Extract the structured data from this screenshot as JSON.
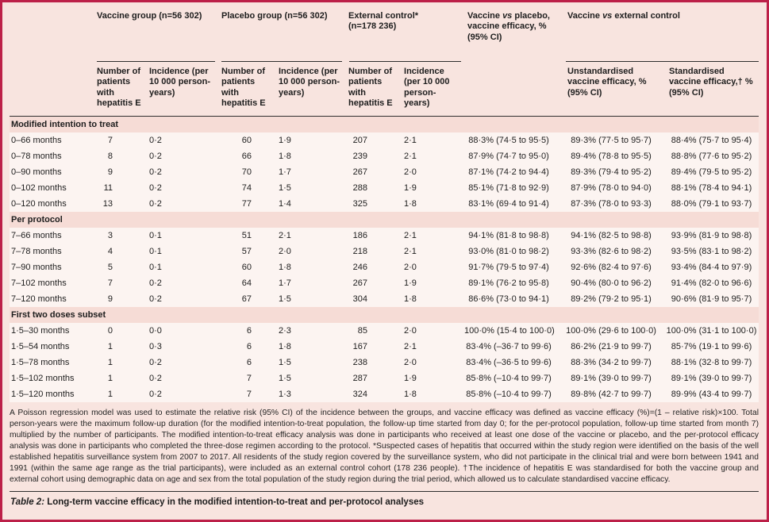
{
  "colors": {
    "accent_border": "#bc2048",
    "panel_background": "#f8e4df",
    "data_row_background": "#fcf4f1",
    "section_row_background": "#f6dcd6"
  },
  "header": {
    "groups": {
      "vaccine": {
        "label": "Vaccine group (n=56 302)"
      },
      "placebo": {
        "label": "Placebo group (n=56 302)"
      },
      "external": {
        "line1": "External control*",
        "line2": "(n=178 236)"
      },
      "vaccine_vs_placebo": {
        "pre": "Vaccine ",
        "vs": "vs",
        "post": " placebo, vaccine efficacy, % (95% CI)"
      },
      "vaccine_vs_external": {
        "pre": "Vaccine ",
        "vs": "vs",
        "post": " external control"
      }
    },
    "subheaders": {
      "n_patients": "Number of patients with hepatitis E",
      "incidence": "Incidence (per 10 000 person-years)",
      "incidence_external": "Incidence (per 10 000 person-years)",
      "unstandardised": "Unstandardised vaccine efficacy, % (95% CI)",
      "standardised": "Standardised vaccine efficacy,† % (95% CI)"
    }
  },
  "sections": [
    {
      "title": "Modified intention to treat",
      "rows": [
        [
          "0–66 months",
          "7",
          "0·2",
          "60",
          "1·9",
          "207",
          "2·1",
          "88·3% (74·5 to 95·5)",
          "89·3% (77·5 to 95·7)",
          "88·4% (75·7 to 95·4)"
        ],
        [
          "0–78 months",
          "8",
          "0·2",
          "66",
          "1·8",
          "239",
          "2·1",
          "87·9% (74·7 to 95·0)",
          "89·4% (78·8 to 95·5)",
          "88·8% (77·6 to 95·2)"
        ],
        [
          "0–90 months",
          "9",
          "0·2",
          "70",
          "1·7",
          "267",
          "2·0",
          "87·1% (74·2 to 94·4)",
          "89·3% (79·4 to 95·2)",
          "89·4% (79·5 to 95·2)"
        ],
        [
          "0–102 months",
          "11",
          "0·2",
          "74",
          "1·5",
          "288",
          "1·9",
          "85·1% (71·8 to 92·9)",
          "87·9% (78·0 to 94·0)",
          "88·1% (78·4 to 94·1)"
        ],
        [
          "0–120 months",
          "13",
          "0·2",
          "77",
          "1·4",
          "325",
          "1·8",
          "83·1% (69·4 to 91·4)",
          "87·3% (78·0 to 93·3)",
          "88·0% (79·1 to 93·7)"
        ]
      ]
    },
    {
      "title": "Per protocol",
      "rows": [
        [
          "7–66 months",
          "3",
          "0·1",
          "51",
          "2·1",
          "186",
          "2·1",
          "94·1% (81·8 to 98·8)",
          "94·1% (82·5 to 98·8)",
          "93·9% (81·9 to 98·8)"
        ],
        [
          "7–78 months",
          "4",
          "0·1",
          "57",
          "2·0",
          "218",
          "2·1",
          "93·0% (81·0 to 98·2)",
          "93·3% (82·6 to 98·2)",
          "93·5% (83·1 to 98·2)"
        ],
        [
          "7–90 months",
          "5",
          "0·1",
          "60",
          "1·8",
          "246",
          "2·0",
          "91·7% (79·5 to 97·4)",
          "92·6% (82·4 to 97·6)",
          "93·4% (84·4 to 97·9)"
        ],
        [
          "7–102 months",
          "7",
          "0·2",
          "64",
          "1·7",
          "267",
          "1·9",
          "89·1% (76·2 to 95·8)",
          "90·4% (80·0 to 96·2)",
          "91·4% (82·0 to 96·6)"
        ],
        [
          "7–120 months",
          "9",
          "0·2",
          "67",
          "1·5",
          "304",
          "1·8",
          "86·6% (73·0 to 94·1)",
          "89·2% (79·2 to 95·1)",
          "90·6% (81·9 to 95·7)"
        ]
      ]
    },
    {
      "title": "First two doses subset",
      "rows": [
        [
          "1·5–30 months",
          "0",
          "0·0",
          "6",
          "2·3",
          "85",
          "2·0",
          "100·0% (15·4 to 100·0)",
          "100·0% (29·6 to 100·0)",
          "100·0% (31·1 to 100·0)"
        ],
        [
          "1·5–54 months",
          "1",
          "0·3",
          "6",
          "1·8",
          "167",
          "2·1",
          "83·4% (–36·7 to 99·6)",
          "86·2% (21·9 to 99·7)",
          "85·7% (19·1 to 99·6)"
        ],
        [
          "1·5–78 months",
          "1",
          "0·2",
          "6",
          "1·5",
          "238",
          "2·0",
          "83·4% (–36·5 to 99·6)",
          "88·3% (34·2 to 99·7)",
          "88·1% (32·8 to 99·7)"
        ],
        [
          "1·5–102 months",
          "1",
          "0·2",
          "7",
          "1·5",
          "287",
          "1·9",
          "85·8% (–10·4 to 99·7)",
          "89·1% (39·0 to 99·7)",
          "89·1% (39·0 to 99·7)"
        ],
        [
          "1·5–120 months",
          "1",
          "0·2",
          "7",
          "1·3",
          "324",
          "1·8",
          "85·8% (–10·4 to 99·7)",
          "89·8% (42·7 to 99·7)",
          "89·9% (43·4 to 99·7)"
        ]
      ]
    }
  ],
  "footnote": "A Poisson regression model was used to estimate the relative risk (95% CI) of the incidence between the groups, and vaccine efficacy was defined as vaccine efficacy (%)=(1 – relative risk)×100. Total person-years were the maximum follow-up duration (for the modified intention-to-treat population, the follow-up time started from day 0; for the per-protocol population, follow-up time started from month 7) multiplied by the number of participants. The modified intention-to-treat efficacy analysis was done in participants who received at least one dose of the vaccine or placebo, and the per-protocol efficacy analysis was done in participants who completed the three-dose regimen according to the protocol. *Suspected cases of hepatitis that occurred within the study region were identified on the basis of the well established hepatitis surveillance system from 2007 to 2017. All residents of the study region covered by the surveillance system, who did not participate in the clinical trial and were born between 1941 and 1991 (within the same age range as the trial participants), were included as an external control cohort (178 236 people). †The incidence of hepatitis E was standardised for both the vaccine group and external cohort using demographic data on age and sex from the total population of the study region during the trial period, which allowed us to calculate standardised vaccine efficacy.",
  "caption": {
    "prefix": "Table 2:",
    "text": "Long-term vaccine efficacy in the modified intention-to-treat and per-protocol analyses"
  }
}
